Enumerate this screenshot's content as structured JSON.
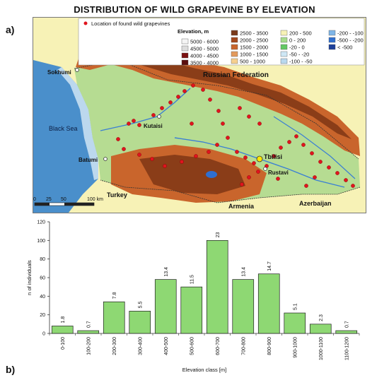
{
  "title": "DISTRIBUTION OF WILD GRAPEVINE BY ELEVATION",
  "panel_labels": [
    "a)",
    "b)"
  ],
  "map": {
    "legend_point_label": "Location of found wild grapevines",
    "legend_title": "Elevation, m",
    "elevation_classes": [
      {
        "label": "5000 - 6000",
        "color": "#f4f4f4"
      },
      {
        "label": "4500 - 5000",
        "color": "#dddddd"
      },
      {
        "label": "4000 - 4500",
        "color": "#7a1010"
      },
      {
        "label": "3500 - 4000",
        "color": "#5a0f0f"
      },
      {
        "label": "2500 - 3500",
        "color": "#7a3a1a"
      },
      {
        "label": "2000 - 2500",
        "color": "#a4481c"
      },
      {
        "label": "1500 - 2000",
        "color": "#c9652c"
      },
      {
        "label": "1000 - 1500",
        "color": "#e39a5c"
      },
      {
        "label": "500 - 1000",
        "color": "#f6cf8e"
      },
      {
        "label": "200 - 500",
        "color": "#f7f2b6"
      },
      {
        "label": "0 - 200",
        "color": "#a6dc8c"
      },
      {
        "label": "-20 - 0",
        "color": "#64c864"
      },
      {
        "label": "-50 - -20",
        "color": "#cfe7f5"
      },
      {
        "label": "-100 - -50",
        "color": "#b9d8ee"
      },
      {
        "label": "-200 - -100",
        "color": "#7fb6e8"
      },
      {
        "label": "-500 - -200",
        "color": "#2f6fd0"
      },
      {
        "label": "< -500",
        "color": "#1c3f9a"
      }
    ],
    "place_labels": {
      "russian_federation": "Russian Federation",
      "sokhumi": "Sokhumi",
      "black_sea": "Black Sea",
      "kutaisi": "Kutaisi",
      "batumi": "Batumi",
      "tbilisi": "Tbilisi",
      "rustavi": "Rustavi",
      "turkey": "Turkey",
      "armenia": "Armenia",
      "azerbaijan": "Azerbaijan"
    },
    "scale_bar": {
      "ticks": [
        "0",
        "25",
        "50"
      ],
      "end_label": "100 km"
    }
  },
  "chart_data": {
    "type": "bar",
    "categories": [
      "0-100",
      "100-200",
      "200-300",
      "300-400",
      "400-500",
      "500-600",
      "600-700",
      "700-800",
      "800-900",
      "900-1000",
      "1000-1100",
      "1100-1200"
    ],
    "values": [
      8,
      3,
      34,
      24,
      58,
      50,
      100,
      58,
      64,
      22,
      10,
      3
    ],
    "data_labels": [
      "1.8",
      "0.7",
      "7.8",
      "5.5",
      "13.4",
      "11.5",
      "23",
      "13.4",
      "14.7",
      "5.1",
      "2.3",
      "0.7"
    ],
    "xlabel": "Elevation class [m]",
    "ylabel": "n of individuals",
    "ylim": [
      0,
      120
    ],
    "yticks": [
      "0",
      "20",
      "40",
      "60",
      "80",
      "100",
      "120"
    ],
    "bar_color": "#8ed873",
    "bar_outline": "#1f1f1f",
    "grid": false
  }
}
